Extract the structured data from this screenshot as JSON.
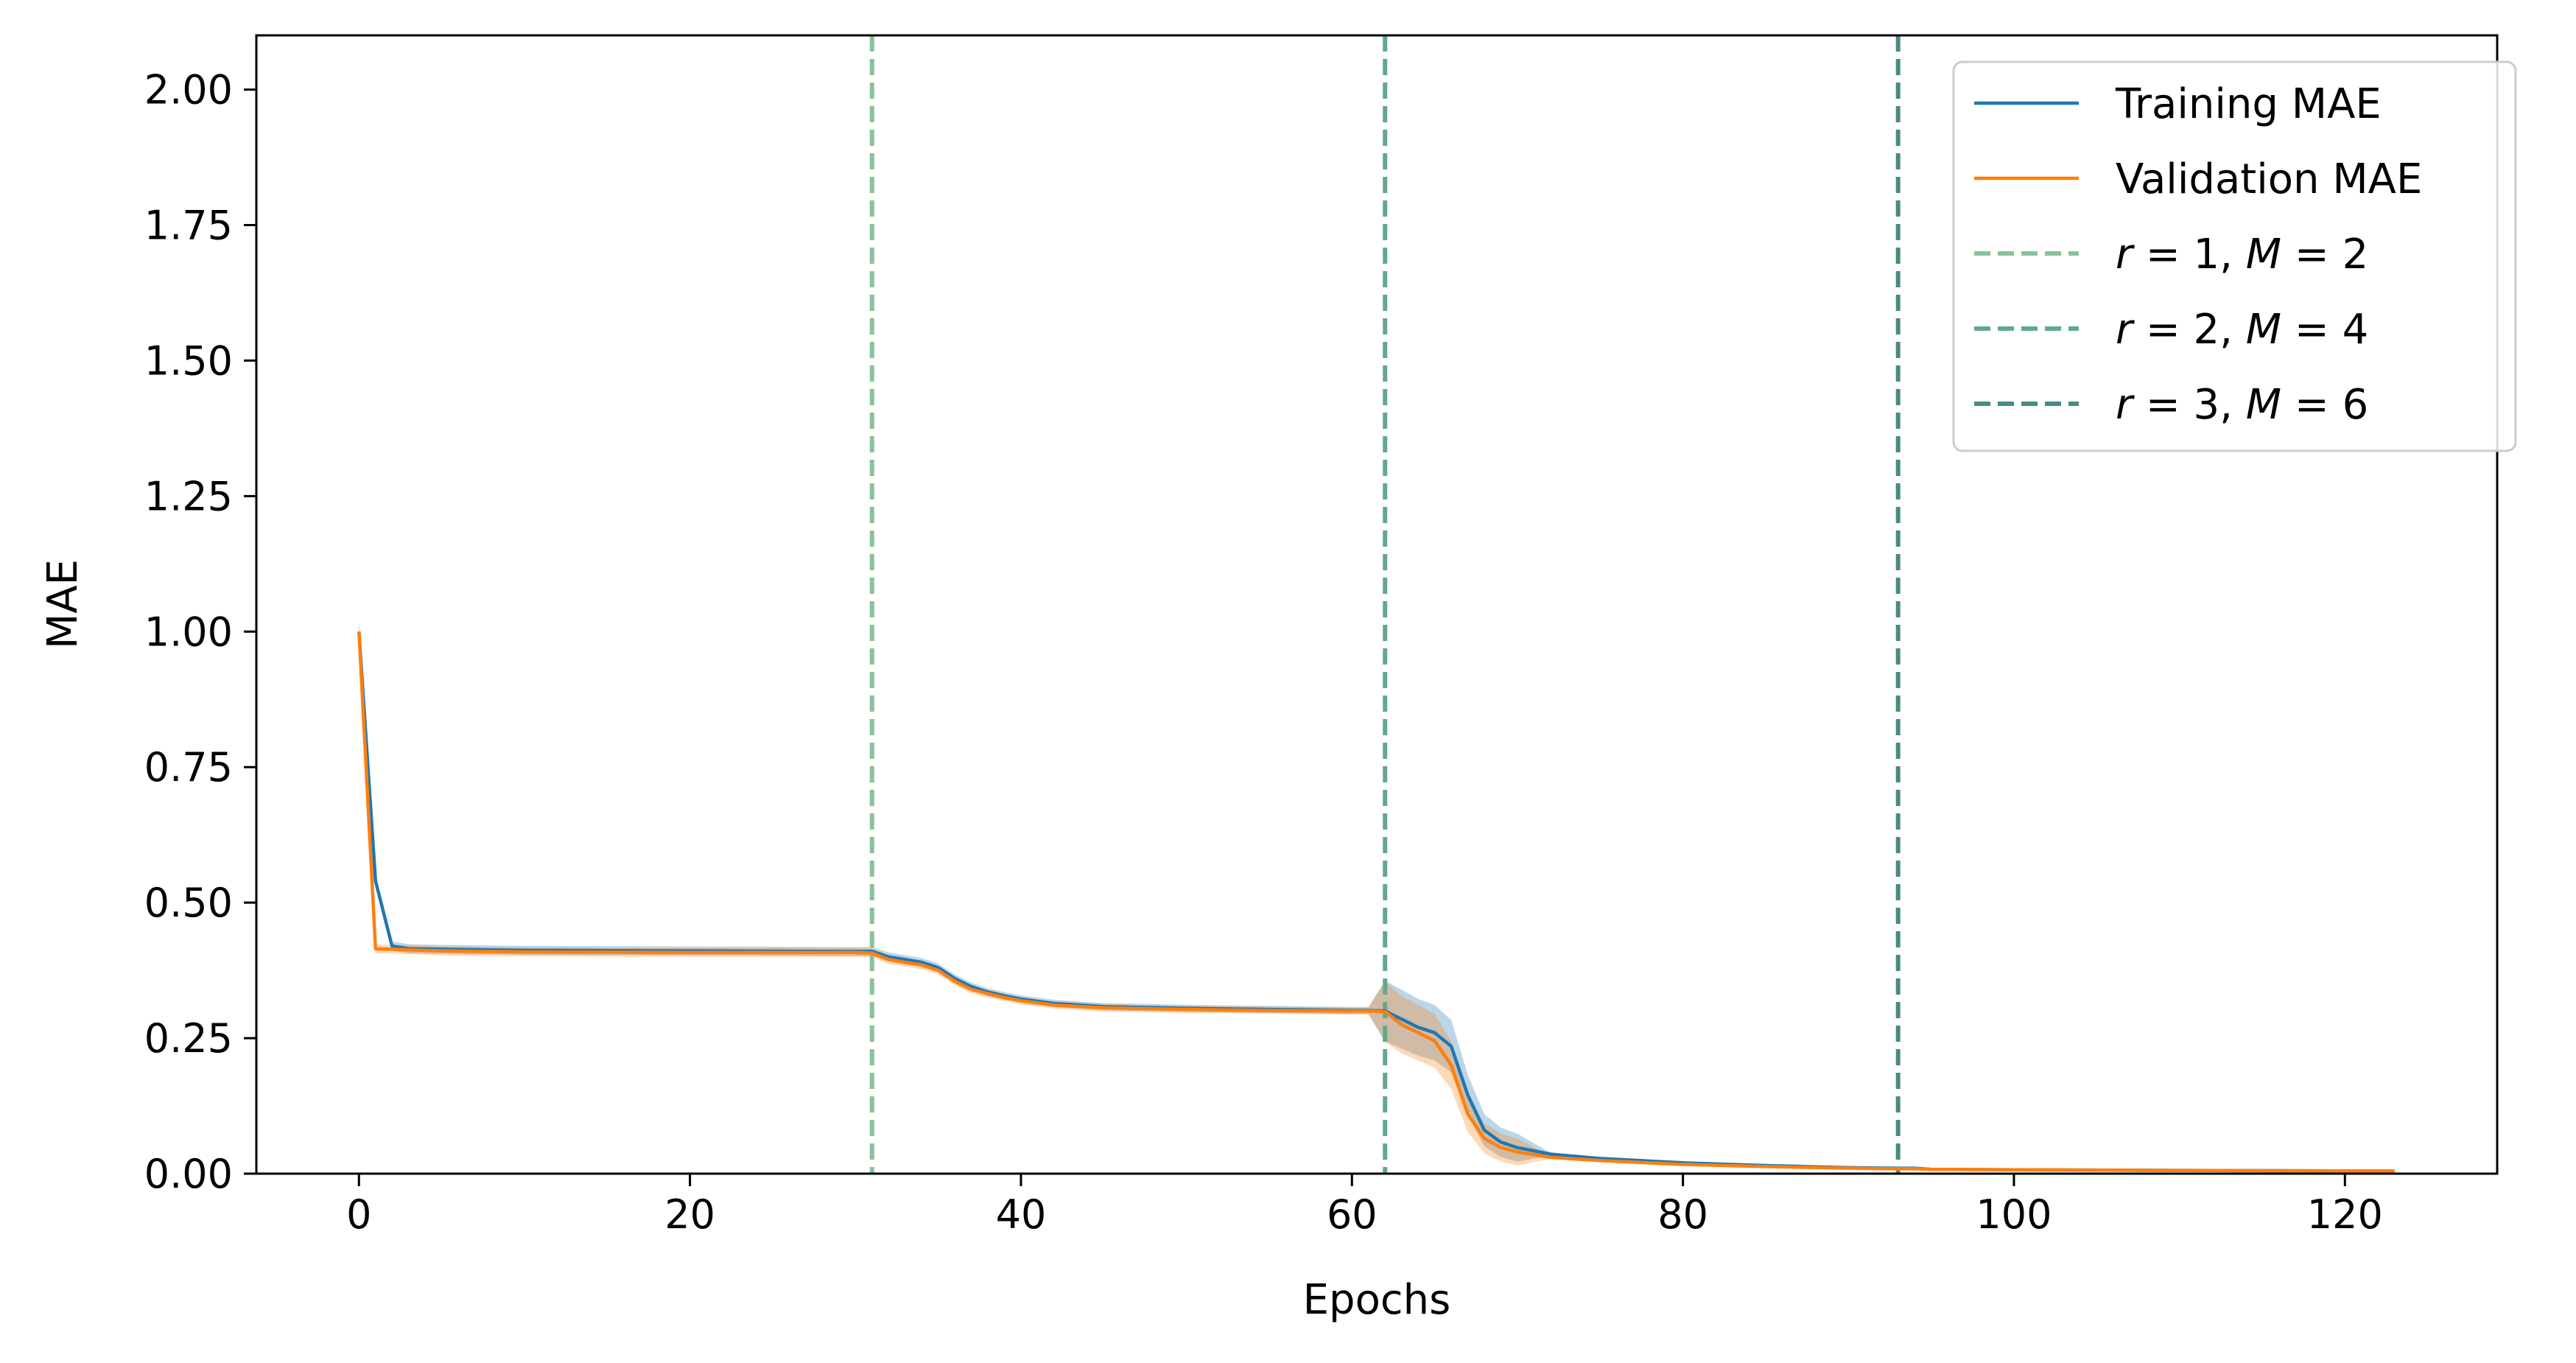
{
  "chart_data": {
    "type": "line",
    "xlabel": "Epochs",
    "ylabel": "MAE",
    "xlim": [
      -6.2,
      129.2
    ],
    "ylim": [
      0,
      2.1
    ],
    "xticks": [
      0,
      20,
      40,
      60,
      80,
      100,
      120
    ],
    "xtick_labels": [
      "0",
      "20",
      "40",
      "60",
      "80",
      "100",
      "120"
    ],
    "yticks": [
      0,
      0.25,
      0.5,
      0.75,
      1.0,
      1.25,
      1.5,
      1.75,
      2.0
    ],
    "ytick_labels": [
      "0.00",
      "0.25",
      "0.50",
      "0.75",
      "1.00",
      "1.25",
      "1.50",
      "1.75",
      "2.00"
    ],
    "grid": false,
    "legend_position": "top-right",
    "series": [
      {
        "name": "Training MAE",
        "color": "#1f77b4",
        "x": [
          0,
          1,
          2,
          3,
          5,
          10,
          20,
          30,
          31,
          32,
          33,
          34,
          35,
          36,
          37,
          38,
          39,
          40,
          42,
          45,
          50,
          55,
          60,
          61,
          62,
          63,
          64,
          65,
          66,
          67,
          68,
          69,
          70,
          72,
          75,
          80,
          85,
          90,
          93,
          94,
          95,
          100,
          110,
          120,
          123
        ],
        "y": [
          1.0,
          0.54,
          0.42,
          0.415,
          0.414,
          0.412,
          0.411,
          0.41,
          0.41,
          0.4,
          0.395,
          0.39,
          0.38,
          0.36,
          0.345,
          0.335,
          0.328,
          0.322,
          0.314,
          0.308,
          0.305,
          0.303,
          0.301,
          0.301,
          0.3,
          0.285,
          0.27,
          0.26,
          0.235,
          0.145,
          0.08,
          0.058,
          0.048,
          0.036,
          0.028,
          0.02,
          0.015,
          0.011,
          0.01,
          0.01,
          0.008,
          0.007,
          0.006,
          0.005,
          0.005
        ]
      },
      {
        "name": "Validation MAE",
        "color": "#ff7f0e",
        "x": [
          0,
          1,
          2,
          3,
          5,
          10,
          20,
          30,
          31,
          32,
          33,
          34,
          35,
          36,
          37,
          38,
          39,
          40,
          42,
          45,
          50,
          55,
          60,
          61,
          62,
          63,
          64,
          65,
          66,
          67,
          68,
          69,
          70,
          72,
          75,
          80,
          85,
          90,
          93,
          94,
          95,
          100,
          110,
          120,
          123
        ],
        "y": [
          1.0,
          0.415,
          0.414,
          0.413,
          0.411,
          0.409,
          0.408,
          0.408,
          0.407,
          0.395,
          0.39,
          0.385,
          0.375,
          0.355,
          0.34,
          0.332,
          0.325,
          0.319,
          0.311,
          0.306,
          0.303,
          0.301,
          0.3,
          0.3,
          0.299,
          0.275,
          0.26,
          0.245,
          0.2,
          0.11,
          0.065,
          0.048,
          0.04,
          0.03,
          0.024,
          0.017,
          0.013,
          0.01,
          0.009,
          0.009,
          0.008,
          0.007,
          0.006,
          0.005,
          0.005
        ]
      }
    ],
    "vlines": [
      {
        "x": 31,
        "color": "#88c29c",
        "label_r": "r",
        "label_eq1": " = 1,  ",
        "label_m": "M",
        "label_eq2": " = 2"
      },
      {
        "x": 62,
        "color": "#62a88f",
        "label_r": "r",
        "label_eq1": " = 2,  ",
        "label_m": "M",
        "label_eq2": " = 4"
      },
      {
        "x": 93,
        "color": "#4a8a82",
        "label_r": "r",
        "label_eq1": " = 3,  ",
        "label_m": "M",
        "label_eq2": " = 6"
      }
    ]
  }
}
